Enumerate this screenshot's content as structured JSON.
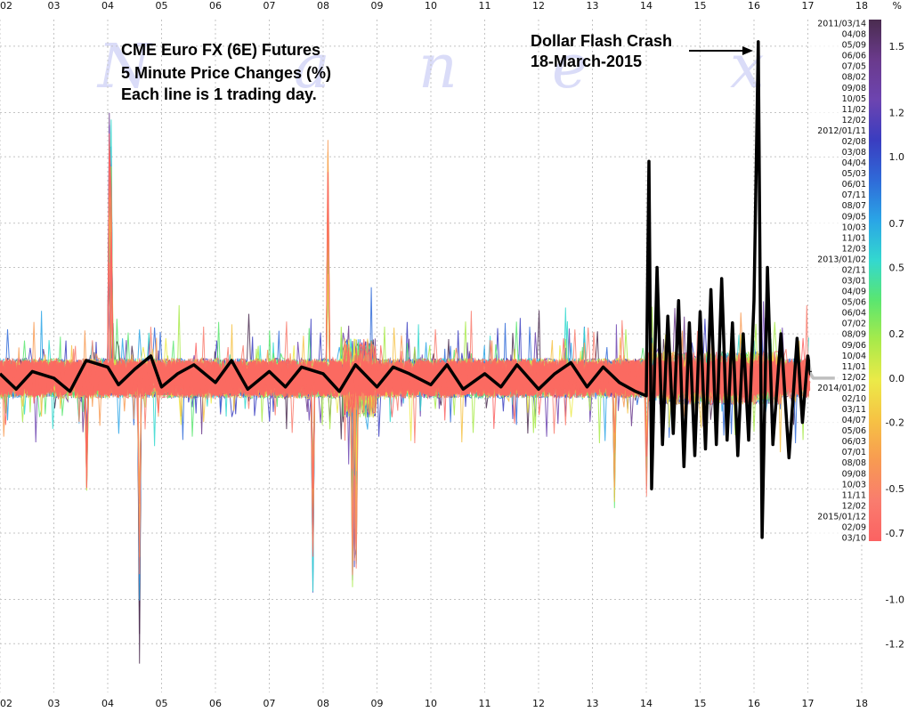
{
  "chart_data": {
    "type": "line",
    "title_lines": [
      "CME Euro FX (6E) Futures",
      "5 Minute Price Changes (%)",
      "Each line is 1 trading day."
    ],
    "annotation_lines": [
      "Dollar Flash Crash",
      "18-March-2015"
    ],
    "watermark_letters": [
      "N",
      "a",
      "n",
      "e",
      "x"
    ],
    "x_ticks": [
      "02",
      "03",
      "04",
      "05",
      "06",
      "07",
      "08",
      "09",
      "10",
      "11",
      "12",
      "13",
      "14",
      "15",
      "16",
      "17",
      "18"
    ],
    "xlim": [
      2,
      18
    ],
    "y_unit": "%",
    "y_ticks": [
      "1.5",
      "1.2",
      "1.0",
      "0.7",
      "0.5",
      "0.2",
      "0.0",
      "-0.2",
      "-0.5",
      "-0.7",
      "-1.0",
      "-1.2"
    ],
    "ylim": [
      -1.42,
      1.62
    ],
    "grid": true,
    "colorbar": {
      "labels": [
        "2011/03/14",
        "04/08",
        "05/09",
        "06/06",
        "07/05",
        "08/02",
        "09/08",
        "10/05",
        "11/02",
        "12/02",
        "2012/01/11",
        "02/08",
        "03/08",
        "04/04",
        "05/03",
        "06/01",
        "07/11",
        "08/07",
        "09/05",
        "10/03",
        "11/01",
        "12/03",
        "2013/01/02",
        "02/11",
        "03/01",
        "04/09",
        "05/06",
        "06/04",
        "07/02",
        "08/09",
        "09/06",
        "10/04",
        "11/01",
        "12/02",
        "2014/01/02",
        "02/10",
        "03/11",
        "04/07",
        "05/06",
        "06/03",
        "07/01",
        "08/08",
        "09/08",
        "10/03",
        "11/11",
        "12/02",
        "2015/01/12",
        "02/09",
        "03/10"
      ],
      "ticks": [
        "1.5",
        "1.2",
        "1.0",
        "0.7",
        "0.5",
        "0.2",
        "0.0",
        "-0.2",
        "-0.5",
        "-0.7"
      ],
      "colors": [
        "#4a2c4f",
        "#6a3a8c",
        "#6d44b0",
        "#3a3dc0",
        "#2f6ad8",
        "#2aa5e6",
        "#33d8cf",
        "#5ae670",
        "#a8ea4a",
        "#ecea48",
        "#f6c244",
        "#f89a52",
        "#f97c6e",
        "#fb6262"
      ]
    },
    "highlight_series": {
      "name": "18-March-2015",
      "color": "#000000",
      "points": [
        [
          2.0,
          0.02
        ],
        [
          2.3,
          -0.05
        ],
        [
          2.6,
          0.03
        ],
        [
          3.0,
          0.0
        ],
        [
          3.3,
          -0.06
        ],
        [
          3.6,
          0.08
        ],
        [
          4.0,
          0.05
        ],
        [
          4.2,
          -0.03
        ],
        [
          4.5,
          0.04
        ],
        [
          4.8,
          0.1
        ],
        [
          5.0,
          -0.04
        ],
        [
          5.3,
          0.02
        ],
        [
          5.6,
          0.06
        ],
        [
          6.0,
          -0.02
        ],
        [
          6.3,
          0.08
        ],
        [
          6.6,
          -0.05
        ],
        [
          7.0,
          0.03
        ],
        [
          7.3,
          -0.04
        ],
        [
          7.6,
          0.05
        ],
        [
          8.0,
          0.02
        ],
        [
          8.3,
          -0.06
        ],
        [
          8.6,
          0.06
        ],
        [
          9.0,
          -0.04
        ],
        [
          9.3,
          0.05
        ],
        [
          9.6,
          0.02
        ],
        [
          10.0,
          -0.03
        ],
        [
          10.3,
          0.06
        ],
        [
          10.6,
          -0.05
        ],
        [
          11.0,
          0.02
        ],
        [
          11.3,
          -0.04
        ],
        [
          11.6,
          0.06
        ],
        [
          12.0,
          -0.05
        ],
        [
          12.3,
          0.02
        ],
        [
          12.6,
          0.07
        ],
        [
          12.9,
          -0.04
        ],
        [
          13.2,
          0.05
        ],
        [
          13.5,
          -0.02
        ],
        [
          13.8,
          -0.06
        ],
        [
          14.0,
          -0.08
        ],
        [
          14.05,
          0.98
        ],
        [
          14.1,
          -0.5
        ],
        [
          14.2,
          0.5
        ],
        [
          14.3,
          -0.3
        ],
        [
          14.4,
          0.28
        ],
        [
          14.5,
          -0.25
        ],
        [
          14.6,
          0.35
        ],
        [
          14.7,
          -0.4
        ],
        [
          14.8,
          0.25
        ],
        [
          14.9,
          -0.35
        ],
        [
          15.0,
          0.3
        ],
        [
          15.1,
          -0.32
        ],
        [
          15.2,
          0.4
        ],
        [
          15.3,
          -0.3
        ],
        [
          15.4,
          0.45
        ],
        [
          15.5,
          -0.28
        ],
        [
          15.6,
          0.25
        ],
        [
          15.7,
          -0.35
        ],
        [
          15.8,
          0.2
        ],
        [
          15.9,
          -0.28
        ],
        [
          16.0,
          0.35
        ],
        [
          16.08,
          1.52
        ],
        [
          16.15,
          -0.72
        ],
        [
          16.25,
          0.5
        ],
        [
          16.35,
          -0.3
        ],
        [
          16.5,
          0.2
        ],
        [
          16.65,
          -0.36
        ],
        [
          16.8,
          0.18
        ],
        [
          16.9,
          -0.2
        ],
        [
          17.0,
          0.1
        ],
        [
          17.05,
          0.02
        ],
        [
          17.1,
          0.0
        ],
        [
          17.5,
          0.0
        ]
      ]
    }
  }
}
